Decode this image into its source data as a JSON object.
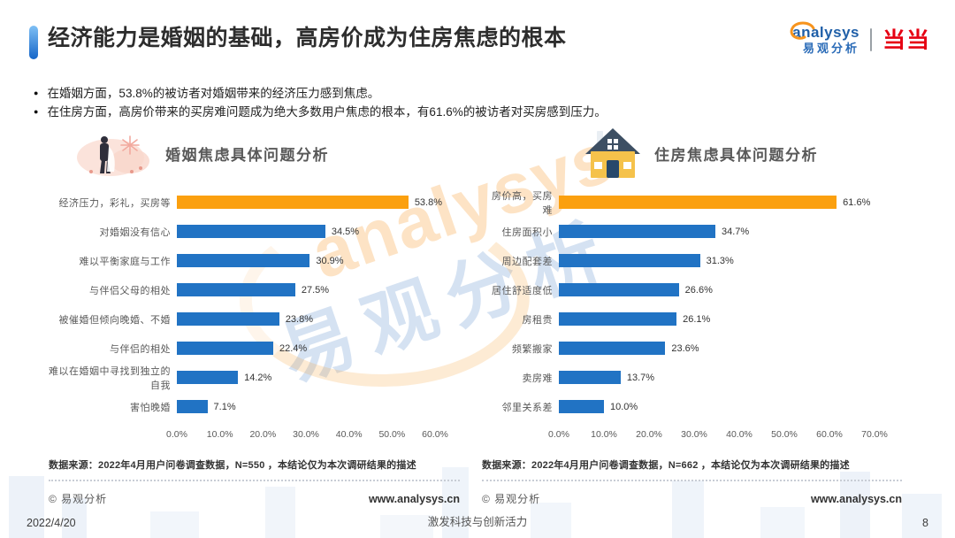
{
  "page": {
    "title": "经济能力是婚姻的基础，高房价成为住房焦虑的根本",
    "bullets": [
      "在婚姻方面，53.8%的被访者对婚姻带来的经济压力感到焦虑。",
      "在住房方面，高房价带来的买房难问题成为绝大多数用户焦虑的根本，有61.6%的被访者对买房感到压力。"
    ]
  },
  "brand": {
    "analysys_en": "analysys",
    "analysys_cn": "易观分析",
    "partner_logo": "当当"
  },
  "watermark": {
    "en": "analysys",
    "cn": "易观分析"
  },
  "chart_data": [
    {
      "type": "bar",
      "orientation": "horizontal",
      "title": "婚姻焦虑具体问题分析",
      "icon": "wedding-couple",
      "categories": [
        "经济压力，彩礼，买房等",
        "对婚姻没有信心",
        "难以平衡家庭与工作",
        "与伴侣父母的相处",
        "被催婚但倾向晚婚、不婚",
        "与伴侣的相处",
        "难以在婚姻中寻找到独立的自我",
        "害怕晚婚"
      ],
      "values": [
        53.8,
        34.5,
        30.9,
        27.5,
        23.8,
        22.4,
        14.2,
        7.1
      ],
      "value_labels": [
        "53.8%",
        "34.5%",
        "30.9%",
        "27.5%",
        "23.8%",
        "22.4%",
        "14.2%",
        "7.1%"
      ],
      "highlight_index": 0,
      "highlight_color": "#FBA00F",
      "bar_color": "#2173C4",
      "xlim": [
        0,
        60
      ],
      "x_ticks": [
        "0.0%",
        "10.0%",
        "20.0%",
        "30.0%",
        "40.0%",
        "50.0%",
        "60.0%"
      ],
      "grid": false,
      "legend": "none",
      "source": "数据来源：2022年4月用户问卷调查数据，N=550 ，本结论仅为本次调研结果的描述",
      "copyright": "© 易观分析",
      "website": "www.analysys.cn"
    },
    {
      "type": "bar",
      "orientation": "horizontal",
      "title": "住房焦虑具体问题分析",
      "icon": "house",
      "categories": [
        "房价高，买房难",
        "住房面积小",
        "周边配套差",
        "居住舒适度低",
        "房租贵",
        "频繁搬家",
        "卖房难",
        "邻里关系差"
      ],
      "values": [
        61.6,
        34.7,
        31.3,
        26.6,
        26.1,
        23.6,
        13.7,
        10.0
      ],
      "value_labels": [
        "61.6%",
        "34.7%",
        "31.3%",
        "26.6%",
        "26.1%",
        "23.6%",
        "13.7%",
        "10.0%"
      ],
      "highlight_index": 0,
      "highlight_color": "#FBA00F",
      "bar_color": "#2173C4",
      "xlim": [
        0,
        70
      ],
      "x_ticks": [
        "0.0%",
        "10.0%",
        "20.0%",
        "30.0%",
        "40.0%",
        "50.0%",
        "60.0%",
        "70.0%"
      ],
      "grid": false,
      "legend": "none",
      "source": "数据来源：2022年4月用户问卷调查数据，N=662 ，本结论仅为本次调研结果的描述",
      "copyright": "© 易观分析",
      "website": "www.analysys.cn"
    }
  ],
  "footer": {
    "date": "2022/4/20",
    "slogan": "激发科技与创新活力",
    "page_number": "8"
  }
}
